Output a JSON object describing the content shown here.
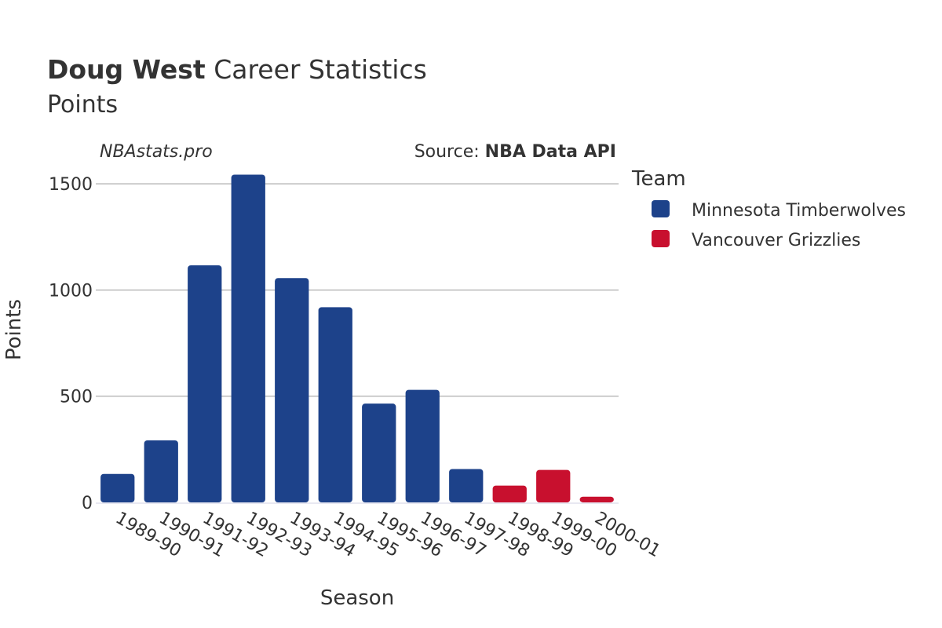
{
  "header": {
    "title_bold": "Doug West",
    "title_rest": " Career Statistics",
    "subtitle": "Points"
  },
  "credits": {
    "site": "NBAstats.pro",
    "source_prefix": "Source: ",
    "source_name": "NBA Data API"
  },
  "legend": {
    "title": "Team",
    "items": [
      {
        "label": "Minnesota Timberwolves",
        "color": "#1d428a"
      },
      {
        "label": "Vancouver Grizzlies",
        "color": "#c8102e"
      }
    ]
  },
  "chart_data": {
    "type": "bar",
    "xlabel": "Season",
    "ylabel": "Points",
    "ylim": [
      0,
      1650
    ],
    "yticks": [
      0,
      500,
      1000,
      1500
    ],
    "grid": true,
    "legend_position": "top-right",
    "categories": [
      "1989-90",
      "1990-91",
      "1991-92",
      "1992-93",
      "1993-94",
      "1994-95",
      "1995-96",
      "1996-97",
      "1997-98",
      "1998-99",
      "1999-00",
      "2000-01"
    ],
    "values": [
      134,
      292,
      1116,
      1543,
      1056,
      919,
      465,
      530,
      157,
      79,
      153,
      27
    ],
    "teams": [
      "Minnesota Timberwolves",
      "Minnesota Timberwolves",
      "Minnesota Timberwolves",
      "Minnesota Timberwolves",
      "Minnesota Timberwolves",
      "Minnesota Timberwolves",
      "Minnesota Timberwolves",
      "Minnesota Timberwolves",
      "Minnesota Timberwolves",
      "Vancouver Grizzlies",
      "Vancouver Grizzlies",
      "Vancouver Grizzlies"
    ]
  }
}
